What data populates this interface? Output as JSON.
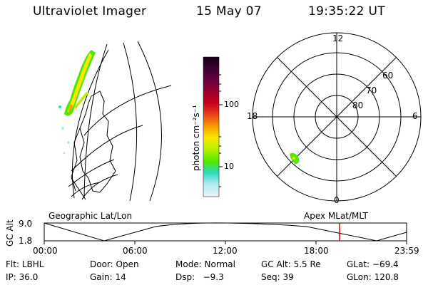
{
  "header": {
    "title": "Ultraviolet Imager",
    "date": "15 May 07",
    "time": "19:35:22 UT"
  },
  "colorbar": {
    "unit_label": "photon cm⁻²s⁻¹",
    "ticks": [
      "100",
      "10"
    ],
    "colors_top_to_bottom": [
      "#140014",
      "#3a0030",
      "#6a0040",
      "#9a0030",
      "#c8001a",
      "#e8401a",
      "#f8a000",
      "#f8e800",
      "#b8f000",
      "#50e800",
      "#30d8c0",
      "#b0ecf0",
      "#e8f4f8"
    ]
  },
  "geo_panel": {
    "label": "Geographic Lat/Lon"
  },
  "polar_panel": {
    "label": "Apex MLat/MLT",
    "mlt_labels": {
      "top": "12",
      "left": "18",
      "right": "6",
      "bottom": "0"
    },
    "lat_labels": [
      "60",
      "70",
      "80"
    ]
  },
  "altitude_strip": {
    "axis_label": "GC Alt",
    "y_ticks": [
      "9.0",
      "1.8"
    ],
    "time_ticks": [
      "00:00",
      "06:00",
      "12:00",
      "18:00",
      "23:59"
    ],
    "marker_time": "19:35",
    "marker_color": "#e00000"
  },
  "status": {
    "row1": {
      "flt": "Flt: LBHL",
      "door": "Door: Open",
      "mode": "Mode: Normal",
      "gcalt": "GC Alt: 5.5 Re",
      "glat": "GLat: −69.4"
    },
    "row2": {
      "ip": "IP: 36.0",
      "gain": "Gain: 14",
      "dsp": "Dsp:   −9.3",
      "seq": "Seq: 39",
      "glon": "GLon: 120.8"
    }
  }
}
